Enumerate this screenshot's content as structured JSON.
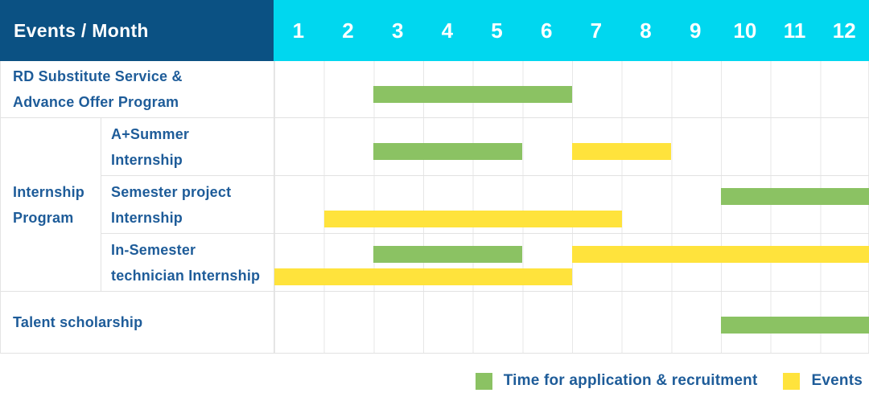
{
  "header": {
    "title": "Events / Month",
    "months": [
      "1",
      "2",
      "3",
      "4",
      "5",
      "6",
      "7",
      "8",
      "9",
      "10",
      "11",
      "12"
    ]
  },
  "colors": {
    "header_bg": "#0b5183",
    "months_bg": "#00d7ef",
    "text_blue": "#1e5c99",
    "application_green": "#8bc263",
    "events_yellow": "#ffe33c"
  },
  "chart_data": {
    "type": "bar",
    "subtype": "horizontal-gantt-schedule",
    "x_unit": "month",
    "x_range": [
      1,
      12
    ],
    "grid": true,
    "group_label": "Internship\nProgram",
    "rows": [
      {
        "label": "RD Substitute Service &\nAdvance Offer Program",
        "group": null,
        "bars": [
          {
            "type": "application",
            "start": 3,
            "end": 6,
            "line": "single"
          }
        ]
      },
      {
        "label": "A+Summer\nInternship",
        "group": "Internship Program",
        "bars": [
          {
            "type": "application",
            "start": 3,
            "end": 5,
            "line": "single"
          },
          {
            "type": "events",
            "start": 7,
            "end": 8,
            "line": "single"
          }
        ]
      },
      {
        "label": "Semester project\nInternship",
        "group": "Internship Program",
        "bars": [
          {
            "type": "application",
            "start": 10,
            "end": 12,
            "line": "upper"
          },
          {
            "type": "events",
            "start": 2,
            "end": 7,
            "line": "lower"
          }
        ]
      },
      {
        "label": "In-Semester\ntechnician Internship",
        "group": "Internship Program",
        "bars": [
          {
            "type": "application",
            "start": 3,
            "end": 5,
            "line": "upper"
          },
          {
            "type": "events",
            "start": 7,
            "end": 12,
            "line": "upper"
          },
          {
            "type": "events",
            "start": 1,
            "end": 6,
            "line": "lower"
          }
        ]
      },
      {
        "label": "Talent scholarship",
        "group": null,
        "bars": [
          {
            "type": "application",
            "start": 10,
            "end": 12,
            "line": "single"
          }
        ]
      }
    ],
    "legend": [
      {
        "type": "application",
        "label": "Time for application & recruitment",
        "color": "#8bc263"
      },
      {
        "type": "events",
        "label": "Events",
        "color": "#ffe33c"
      }
    ],
    "legend_position": "bottom-right"
  }
}
